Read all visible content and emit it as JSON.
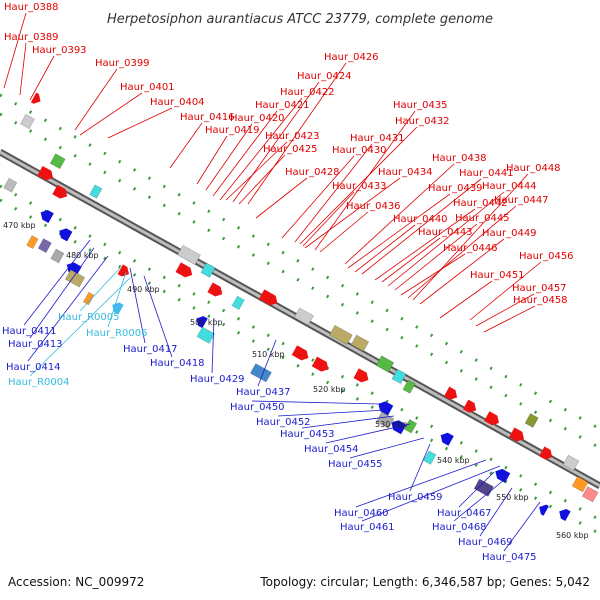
{
  "title": "Herpetosiphon aurantiacus ATCC 23779, complete genome",
  "footer": {
    "accession": "Accession: NC_009972",
    "topology": "Topology: circular; Length: 6,346,587 bp; Genes: 5,042"
  },
  "colors": {
    "forward_label": "#e00000",
    "reverse_label": "#1c1ccc",
    "rna_label": "#33bbdd",
    "backbone": "#8a8a8a"
  },
  "ticks": [
    "470 kbp",
    "480 kbp",
    "490 kbp",
    "500 kbp",
    "510 kbp",
    "520 kbp",
    "530 kbp",
    "540 kbp",
    "550 kbp",
    "560 kbp"
  ],
  "forward_labels": [
    "Haur_0388",
    "Haur_0389",
    "Haur_0393",
    "Haur_0399",
    "Haur_0401",
    "Haur_0404",
    "Haur_0416",
    "Haur_0419",
    "Haur_0420",
    "Haur_0421",
    "Haur_0422",
    "Haur_0423",
    "Haur_0424",
    "Haur_0425",
    "Haur_0426",
    "Haur_0428",
    "Haur_0430",
    "Haur_0431",
    "Haur_0432",
    "Haur_0433",
    "Haur_0434",
    "Haur_0435",
    "Haur_0436",
    "Haur_0438",
    "Haur_0439",
    "Haur_0440",
    "Haur_0441",
    "Haur_0442",
    "Haur_0443",
    "Haur_0444",
    "Haur_0445",
    "Haur_0446",
    "Haur_0447",
    "Haur_0448",
    "Haur_0449",
    "Haur_0451",
    "Haur_0456",
    "Haur_0457",
    "Haur_0458"
  ],
  "reverse_labels": [
    "Haur_0411",
    "Haur_0413",
    "Haur_0414",
    "Haur_0417",
    "Haur_0418",
    "Haur_0429",
    "Haur_0437",
    "Haur_0450",
    "Haur_0452",
    "Haur_0453",
    "Haur_0454",
    "Haur_0455",
    "Haur_0459",
    "Haur_0460",
    "Haur_0461",
    "Haur_0467",
    "Haur_0468",
    "Haur_0469",
    "Haur_0475"
  ],
  "rna_labels": [
    "Haur_R0005",
    "Haur_R0006",
    "Haur_R0004"
  ]
}
